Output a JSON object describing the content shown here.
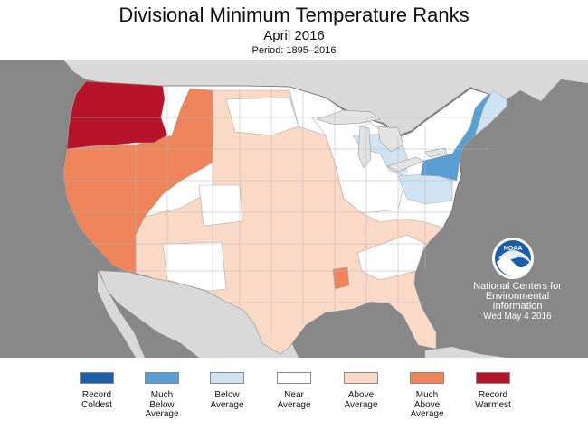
{
  "header": {
    "title": "Divisional Minimum Temperature Ranks",
    "subtitle": "April 2016",
    "period": "Period: 1895–2016"
  },
  "map": {
    "background_color": "#888888",
    "land_neighbors_color": "#d9d9d9",
    "lake_color": "#e3e3e3",
    "division_border_color": "#aaaaaa"
  },
  "credit": {
    "logo_text": "NOAA",
    "line1": "National Centers for",
    "line2": "Environmental",
    "line3": "Information",
    "date": "Wed May  4 2016"
  },
  "legend": {
    "items": [
      {
        "label": "Record\nColdest",
        "color": "#1f5ea8"
      },
      {
        "label": "Much\nBelow\nAverage",
        "color": "#5a9fd4"
      },
      {
        "label": "Below\nAverage",
        "color": "#cfe3f2"
      },
      {
        "label": "Near\nAverage",
        "color": "#ffffff"
      },
      {
        "label": "Above\nAverage",
        "color": "#fbd9c7"
      },
      {
        "label": "Much\nAbove\nAverage",
        "color": "#ef8359"
      },
      {
        "label": "Record\nWarmest",
        "color": "#b7132a"
      }
    ]
  },
  "regions": {
    "record_warmest": [
      "Washington",
      "Oregon",
      "Northern Idaho"
    ],
    "much_above_average": [
      "California",
      "Nevada",
      "Southern Idaho",
      "Western Montana",
      "Northwestern Wyoming",
      "Northern Arizona",
      "Western Utah",
      "Central Mississippi"
    ],
    "much_below_average": [
      "Pennsylvania",
      "New York",
      "Vermont",
      "New Hampshire",
      "Maine"
    ],
    "below_average": [
      "Michigan",
      "Northern Wisconsin",
      "West Virginia",
      "Western Virginia",
      "Ohio"
    ]
  }
}
